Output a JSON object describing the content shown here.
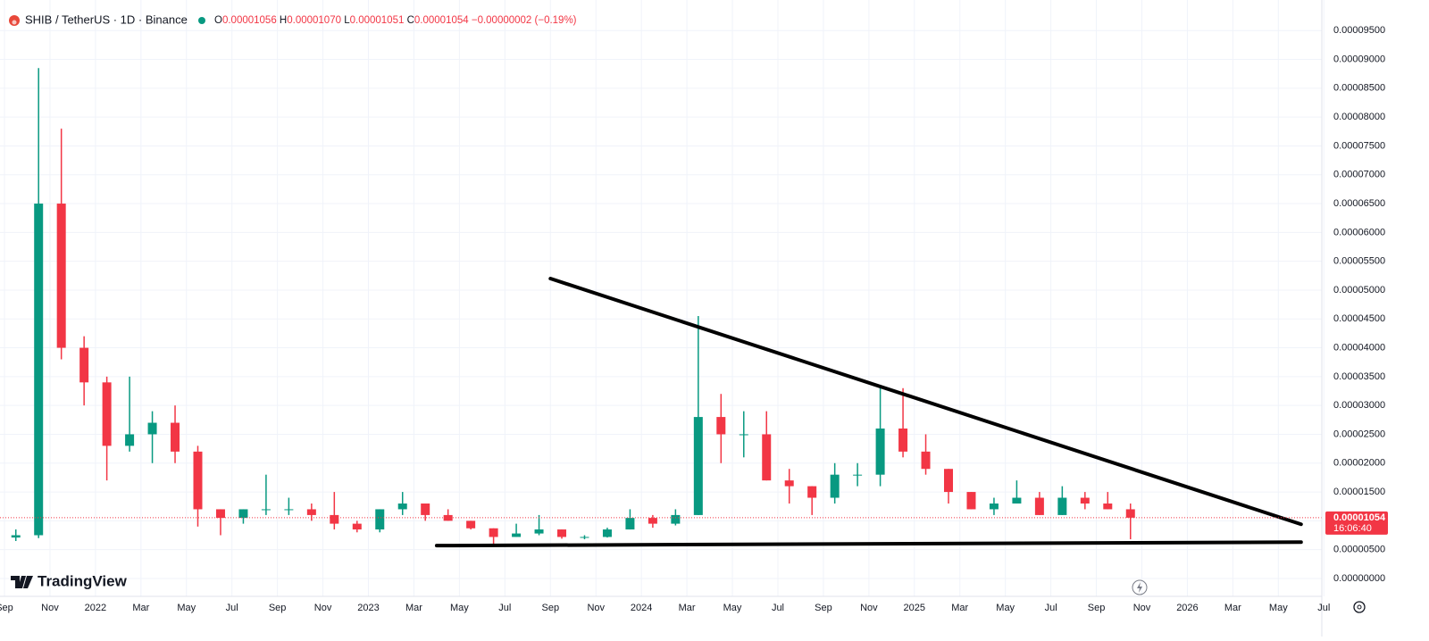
{
  "chart_data": {
    "type": "candlestick",
    "header": {
      "symbol": "SHIB / TetherUS · 1D · Binance",
      "ohlc": [
        {
          "key": "O",
          "value": "0.00001056"
        },
        {
          "key": "H",
          "value": "0.00001070"
        },
        {
          "key": "L",
          "value": "0.00001051"
        },
        {
          "key": "C",
          "value": "0.00001054"
        }
      ],
      "change": "−0.00000002 (−0.19%)"
    },
    "branding": "TradingView",
    "x": [
      "2021-09",
      "2021-10",
      "2021-11",
      "2021-12",
      "2022-01",
      "2022-02",
      "2022-03",
      "2022-04",
      "2022-05",
      "2022-06",
      "2022-07",
      "2022-08",
      "2022-09",
      "2022-10",
      "2022-11",
      "2022-12",
      "2023-01",
      "2023-02",
      "2023-03",
      "2023-04",
      "2023-05",
      "2023-06",
      "2023-07",
      "2023-08",
      "2023-09",
      "2023-10",
      "2023-11",
      "2023-12",
      "2024-01",
      "2024-02",
      "2024-03",
      "2024-04",
      "2024-05",
      "2024-06",
      "2024-07",
      "2024-08",
      "2024-09",
      "2024-10",
      "2024-11",
      "2024-12",
      "2025-01",
      "2025-02",
      "2025-03",
      "2025-04",
      "2025-05",
      "2025-06",
      "2025-07",
      "2025-08",
      "2025-09",
      "2025-10"
    ],
    "open": [
      7.1e-06,
      7.5e-06,
      6.5e-05,
      4e-05,
      3.4e-05,
      2.3e-05,
      2.5e-05,
      2.7e-05,
      2.2e-05,
      1.2e-05,
      1.05e-05,
      1.2e-05,
      1.2e-05,
      1.2e-05,
      1.1e-05,
      9.5e-06,
      8.5e-06,
      1.2e-05,
      1.3e-05,
      1.1e-05,
      1e-05,
      8.7e-06,
      7.2e-06,
      7.8e-06,
      8.5e-06,
      7.2e-06,
      7.2e-06,
      8.5e-06,
      1.05e-05,
      9.5e-06,
      1.1e-05,
      2.8e-05,
      2.5e-05,
      2.5e-05,
      1.7e-05,
      1.6e-05,
      1.4e-05,
      1.8e-05,
      1.8e-05,
      2.6e-05,
      2.2e-05,
      1.9e-05,
      1.5e-05,
      1.2e-05,
      1.3e-05,
      1.4e-05,
      1.1e-05,
      1.4e-05,
      1.3e-05,
      1.2e-05
    ],
    "high": [
      8.5e-06,
      8.85e-05,
      7.8e-05,
      4.2e-05,
      3.5e-05,
      3.5e-05,
      2.9e-05,
      3e-05,
      2.3e-05,
      1.2e-05,
      1.2e-05,
      1.8e-05,
      1.4e-05,
      1.3e-05,
      1.5e-05,
      1e-05,
      1.2e-05,
      1.5e-05,
      1.3e-05,
      1.2e-05,
      1e-05,
      8.7e-06,
      9.5e-06,
      1.1e-05,
      8.5e-06,
      7.5e-06,
      8.8e-06,
      1.2e-05,
      1.1e-05,
      1.2e-05,
      4.55e-05,
      3.2e-05,
      2.9e-05,
      2.9e-05,
      1.9e-05,
      1.6e-05,
      2e-05,
      2e-05,
      3.3e-05,
      3.3e-05,
      2.5e-05,
      1.9e-05,
      1.5e-05,
      1.4e-05,
      1.7e-05,
      1.5e-05,
      1.6e-05,
      1.5e-05,
      1.5e-05,
      1.3e-05
    ],
    "low": [
      6.5e-06,
      7e-06,
      3.8e-05,
      3e-05,
      1.7e-05,
      2.2e-05,
      2e-05,
      2e-05,
      9e-06,
      7.5e-06,
      9.5e-06,
      1.1e-05,
      1.1e-05,
      1e-05,
      8.5e-06,
      8e-06,
      8e-06,
      1.1e-05,
      1e-05,
      1e-05,
      8.5e-06,
      5.5e-06,
      7.2e-06,
      7.5e-06,
      6.9e-06,
      6.8e-06,
      7.1e-06,
      8.5e-06,
      8.8e-06,
      9.2e-06,
      1.1e-05,
      2e-05,
      2.1e-05,
      1.7e-05,
      1.3e-05,
      1.1e-05,
      1.3e-05,
      1.6e-05,
      1.6e-05,
      2.1e-05,
      1.8e-05,
      1.3e-05,
      1.2e-05,
      1.1e-05,
      1.3e-05,
      1.1e-05,
      1.1e-05,
      1.2e-05,
      1.2e-05,
      6.8e-06
    ],
    "close": [
      7.5e-06,
      6.5e-05,
      4e-05,
      3.4e-05,
      2.3e-05,
      2.5e-05,
      2.7e-05,
      2.2e-05,
      1.2e-05,
      1.05e-05,
      1.2e-05,
      1.2e-05,
      1.2e-05,
      1.1e-05,
      9.5e-06,
      8.5e-06,
      1.2e-05,
      1.3e-05,
      1.1e-05,
      1e-05,
      8.7e-06,
      7.2e-06,
      7.8e-06,
      8.5e-06,
      7.2e-06,
      7.2e-06,
      8.5e-06,
      1.05e-05,
      9.5e-06,
      1.1e-05,
      2.8e-05,
      2.5e-05,
      2.5e-05,
      1.7e-05,
      1.6e-05,
      1.4e-05,
      1.8e-05,
      1.8e-05,
      2.6e-05,
      2.2e-05,
      1.9e-05,
      1.5e-05,
      1.2e-05,
      1.3e-05,
      1.4e-05,
      1.1e-05,
      1.4e-05,
      1.3e-05,
      1.2e-05,
      1.054e-05
    ],
    "up_color": "#089981",
    "down_color": "#f23645",
    "trendlines": [
      {
        "color": "#000000",
        "points": [
          {
            "x": "2023-09",
            "y": 5.2e-05
          },
          {
            "x": "2026-06",
            "y": 9.4e-06
          }
        ]
      },
      {
        "color": "#000000",
        "points": [
          {
            "x": "2023-04",
            "y": 5.7e-06
          },
          {
            "x": "2026-06",
            "y": 6.3e-06
          }
        ]
      }
    ],
    "last_price": {
      "value": 1.054e-05,
      "label": "0.00001054"
    },
    "countdown": "16:06:40",
    "ylim": [
      -3.1e-06,
      0.0001003
    ],
    "yticks": [
      {
        "value": 0,
        "label": "0.00000000"
      },
      {
        "value": 5e-06,
        "label": "0.00000500"
      },
      {
        "value": 1e-05,
        "label": "0.00001000"
      },
      {
        "value": 1.5e-05,
        "label": "0.00001500"
      },
      {
        "value": 2e-05,
        "label": "0.00002000"
      },
      {
        "value": 2.5e-05,
        "label": "0.00002500"
      },
      {
        "value": 3e-05,
        "label": "0.00003000"
      },
      {
        "value": 3.5e-05,
        "label": "0.00003500"
      },
      {
        "value": 4e-05,
        "label": "0.00004000"
      },
      {
        "value": 4.5e-05,
        "label": "0.00004500"
      },
      {
        "value": 5e-05,
        "label": "0.00005000"
      },
      {
        "value": 5.5e-05,
        "label": "0.00005500"
      },
      {
        "value": 6e-05,
        "label": "0.00006000"
      },
      {
        "value": 6.5e-05,
        "label": "0.00006500"
      },
      {
        "value": 7e-05,
        "label": "0.00007000"
      },
      {
        "value": 7.5e-05,
        "label": "0.00007500"
      },
      {
        "value": 8e-05,
        "label": "0.00008000"
      },
      {
        "value": 8.5e-05,
        "label": "0.00008500"
      },
      {
        "value": 9e-05,
        "label": "0.00009000"
      },
      {
        "value": 9.5e-05,
        "label": "0.00009500"
      }
    ],
    "xticks": [
      {
        "value": "2021-09",
        "label": "Sep"
      },
      {
        "value": "2021-11",
        "label": "Nov"
      },
      {
        "value": "2022-01",
        "label": "2022"
      },
      {
        "value": "2022-03",
        "label": "Mar"
      },
      {
        "value": "2022-05",
        "label": "May"
      },
      {
        "value": "2022-07",
        "label": "Jul"
      },
      {
        "value": "2022-09",
        "label": "Sep"
      },
      {
        "value": "2022-11",
        "label": "Nov"
      },
      {
        "value": "2023-01",
        "label": "2023"
      },
      {
        "value": "2023-03",
        "label": "Mar"
      },
      {
        "value": "2023-05",
        "label": "May"
      },
      {
        "value": "2023-07",
        "label": "Jul"
      },
      {
        "value": "2023-09",
        "label": "Sep"
      },
      {
        "value": "2023-11",
        "label": "Nov"
      },
      {
        "value": "2024-01",
        "label": "2024"
      },
      {
        "value": "2024-03",
        "label": "Mar"
      },
      {
        "value": "2024-05",
        "label": "May"
      },
      {
        "value": "2024-07",
        "label": "Jul"
      },
      {
        "value": "2024-09",
        "label": "Sep"
      },
      {
        "value": "2024-11",
        "label": "Nov"
      },
      {
        "value": "2025-01",
        "label": "2025"
      },
      {
        "value": "2025-03",
        "label": "Mar"
      },
      {
        "value": "2025-05",
        "label": "May"
      },
      {
        "value": "2025-07",
        "label": "Jul"
      },
      {
        "value": "2025-09",
        "label": "Sep"
      },
      {
        "value": "2025-11",
        "label": "Nov"
      },
      {
        "value": "2026-01",
        "label": "2026"
      },
      {
        "value": "2026-03",
        "label": "Mar"
      },
      {
        "value": "2026-05",
        "label": "May"
      },
      {
        "value": "2026-07",
        "label": "Jul"
      }
    ],
    "grid": true
  }
}
